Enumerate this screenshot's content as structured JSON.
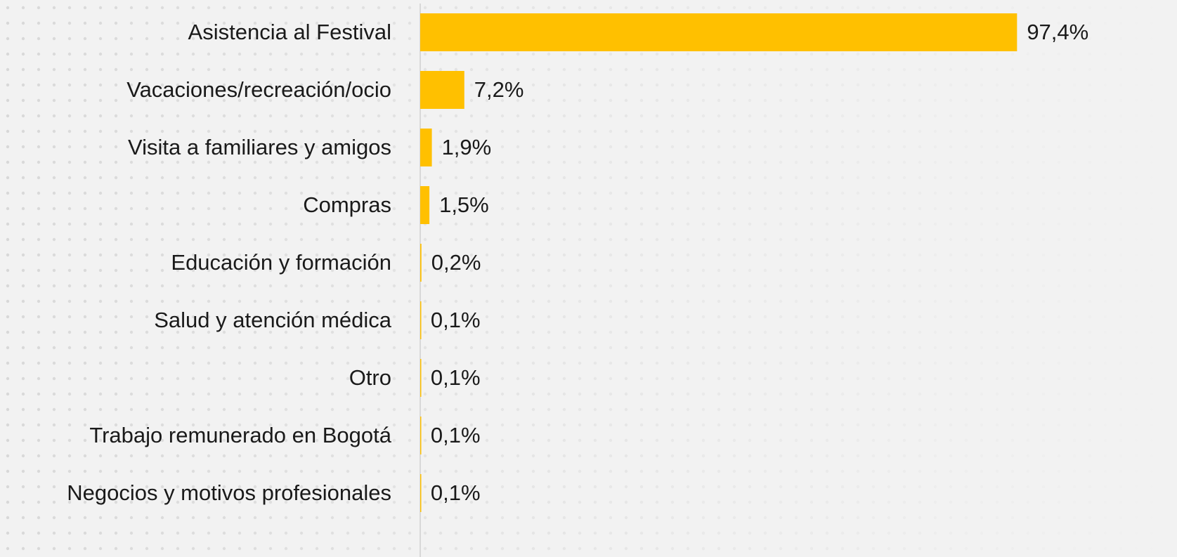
{
  "chart_data": {
    "type": "barh",
    "categories": [
      "Asistencia al Festival",
      "Vacaciones/recreación/ocio",
      "Visita a familiares y amigos",
      "Compras",
      "Educación y formación",
      "Salud y atención médica",
      "Otro",
      "Trabajo remunerado en Bogotá",
      "Negocios y motivos profesionales"
    ],
    "values": [
      97.4,
      7.2,
      1.9,
      1.5,
      0.2,
      0.1,
      0.1,
      0.1,
      0.1
    ],
    "value_labels": [
      "97,4%",
      "7,2%",
      "1,9%",
      "1,5%",
      "0,2%",
      "0,1%",
      "0,1%",
      "0,1%",
      "0,1%"
    ],
    "color": "#ffc000",
    "xlim": [
      0,
      100
    ]
  }
}
